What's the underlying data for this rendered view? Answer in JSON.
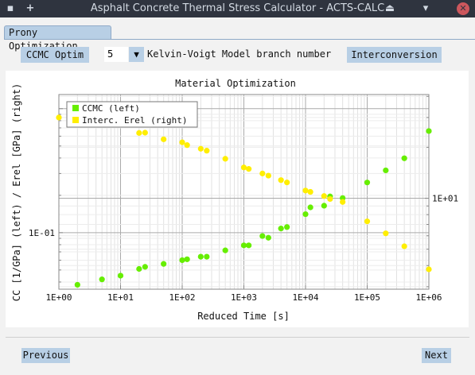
{
  "window": {
    "title": "Asphalt Concrete Thermal Stress Calculator - ACTS-CALC",
    "pin_glyph": "▪",
    "add_glyph": "+",
    "minimize_glyph": "⏏",
    "maximize_glyph": "▾",
    "close_glyph": "✕"
  },
  "tabs": [
    {
      "label": "Prony Optimization"
    }
  ],
  "controls": {
    "ccmc_button": "CCMC Optim",
    "branch_value": "5",
    "spinner_glyph": "▼",
    "branch_label": "Kelvin-Voigt Model branch number",
    "interconversion_button": "Interconversion"
  },
  "navigation": {
    "previous": "Previous",
    "next": "Next"
  },
  "colors": {
    "ccmc": "#66ee00",
    "erel": "#ffee00",
    "grid": "#bbbbbb"
  },
  "chart_data": {
    "type": "scatter",
    "title": "Material Optimization",
    "xlabel": "Reduced Time [s]",
    "ylabel": "CC [1/GPa] (left) / Erel [GPa] (right)",
    "x_scale": "log",
    "y_scale": "log",
    "xlim": [
      1,
      1000000
    ],
    "x_ticks": [
      "1E+00",
      "1E+01",
      "1E+02",
      "1E+03",
      "1E+04",
      "1E+05",
      "1E+06"
    ],
    "left_ylim": [
      0.035,
      1.3
    ],
    "left_tick": {
      "label": "1E-01",
      "value": 0.1
    },
    "right_ylim": [
      2.9,
      41
    ],
    "right_tick": {
      "label": "1E+01",
      "value": 10
    },
    "legend_position": "top-left",
    "grid": true,
    "series": [
      {
        "name": "CCMC (left)",
        "axis": "left",
        "x": [
          2,
          5,
          10,
          20,
          25,
          50,
          100,
          120,
          200,
          250,
          500,
          1000,
          1200,
          2000,
          2500,
          4000,
          5000,
          10000,
          12000,
          20000,
          25000,
          40000,
          100000,
          200000,
          400000,
          1000000
        ],
        "y": [
          0.038,
          0.042,
          0.045,
          0.051,
          0.053,
          0.056,
          0.06,
          0.061,
          0.064,
          0.064,
          0.072,
          0.079,
          0.079,
          0.094,
          0.091,
          0.108,
          0.111,
          0.141,
          0.16,
          0.165,
          0.196,
          0.19,
          0.254,
          0.318,
          0.398,
          0.66
        ]
      },
      {
        "name": "Interc. Erel (right)",
        "axis": "right",
        "x": [
          1,
          20,
          25,
          50,
          100,
          120,
          200,
          250,
          500,
          1000,
          1200,
          2000,
          2500,
          4000,
          5000,
          10000,
          12000,
          20000,
          25000,
          40000,
          100000,
          200000,
          400000,
          1000000
        ],
        "y": [
          30.0,
          24.3,
          24.4,
          22.3,
          21.4,
          20.6,
          19.6,
          19.1,
          17.1,
          15.2,
          14.9,
          14.0,
          13.6,
          12.8,
          12.4,
          11.1,
          10.9,
          10.3,
          9.9,
          9.5,
          7.3,
          6.2,
          5.2,
          3.8
        ]
      }
    ]
  }
}
